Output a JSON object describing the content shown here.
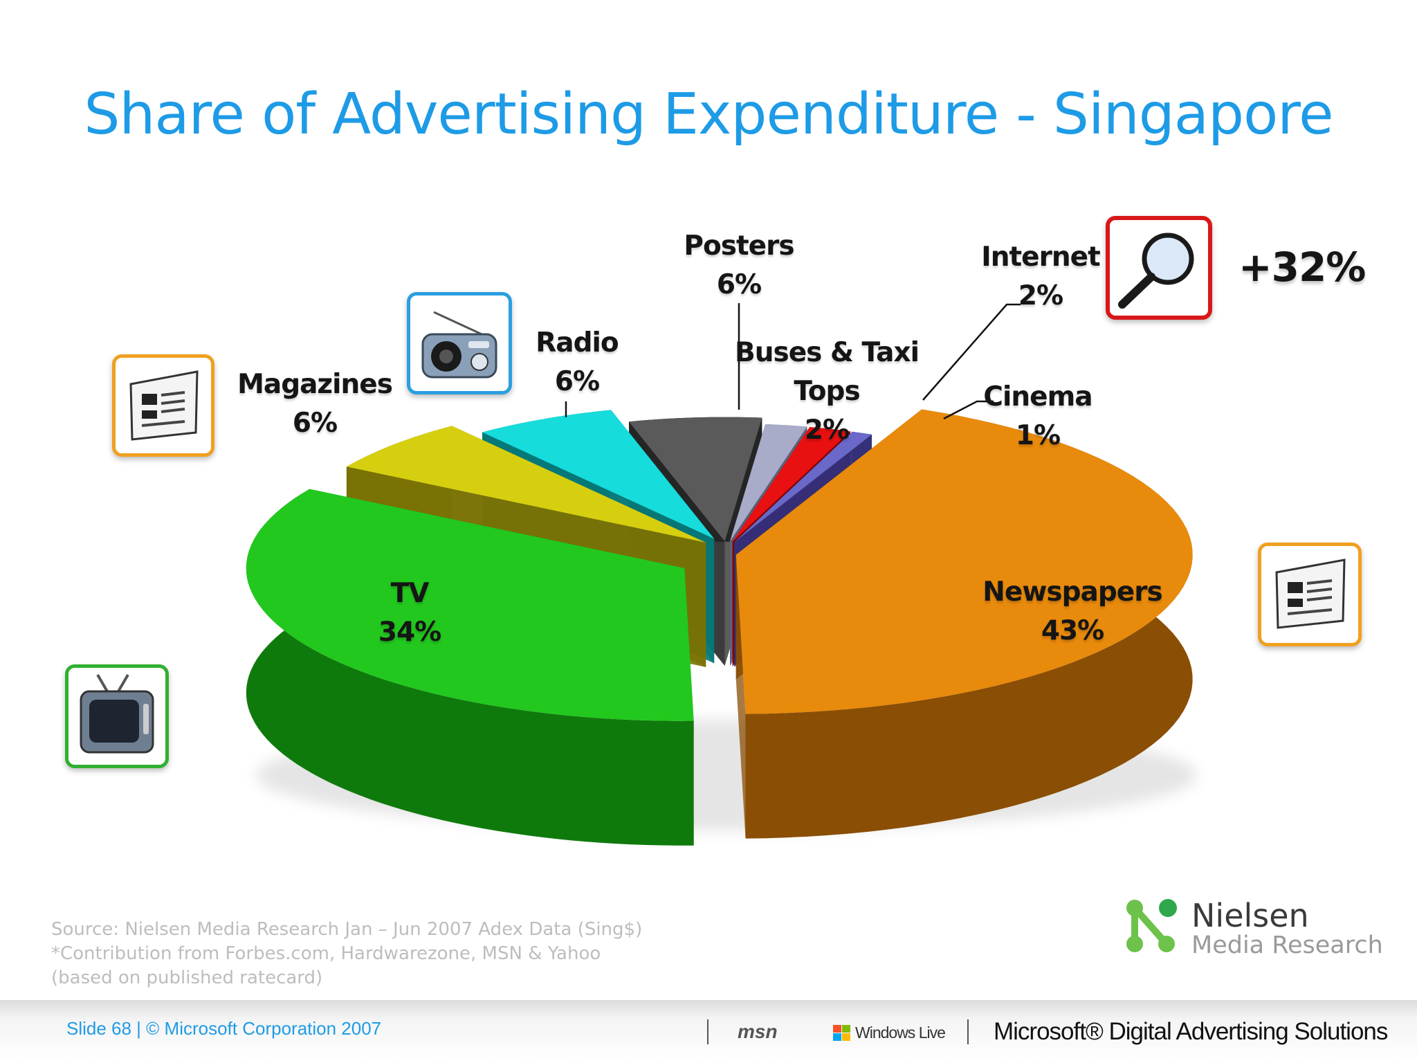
{
  "slide": {
    "title": "Share of Advertising Expenditure - Singapore",
    "growth_callout": "+32%",
    "source_lines": [
      "Source:  Nielsen Media Research  Jan – Jun 2007 Adex Data  (Sing$)",
      "*Contribution from Forbes.com, Hardwarezone, MSN & Yahoo",
      "(based on published ratecard)"
    ],
    "logo": {
      "name": "Nielsen",
      "subtitle": "Media Research"
    },
    "footer": {
      "slide_number": "Slide 68 | © Microsoft Corporation 2007",
      "msn": "msn",
      "windows_live": "Windows Live",
      "brand": "Microsoft® Digital Advertising Solutions"
    }
  },
  "chart_data": {
    "type": "pie",
    "title": "Share of Advertising Expenditure - Singapore",
    "style": "3d-exploded",
    "unit": "%",
    "categories": [
      "Newspapers",
      "TV",
      "Magazines",
      "Radio",
      "Posters",
      "Buses & Taxi Tops",
      "Internet",
      "Cinema"
    ],
    "values": [
      43,
      34,
      6,
      6,
      6,
      2,
      2,
      1
    ],
    "labels": [
      "43%",
      "34%",
      "6%",
      "6%",
      "6%",
      "2%",
      "2%",
      "1%"
    ],
    "colors": [
      "#e88a0c",
      "#22c81e",
      "#d6cf10",
      "#16dcdc",
      "#5a5a5a",
      "#a8acc8",
      "#e81010",
      "#6a68c8"
    ],
    "side_colors": [
      "#8a4e04",
      "#0f7a0c",
      "#7a7204",
      "#057878",
      "#262626",
      "#5c6078",
      "#7a0404",
      "#34307a"
    ],
    "icons": [
      "newspaper-icon",
      "tv-icon",
      "newspaper-icon",
      "radio-icon",
      null,
      null,
      "magnifier-icon",
      null
    ],
    "icon_border_colors": {
      "orange": "#f0a020",
      "green": "#30b030",
      "blue": "#2a9fe0",
      "red": "#d81818"
    }
  }
}
